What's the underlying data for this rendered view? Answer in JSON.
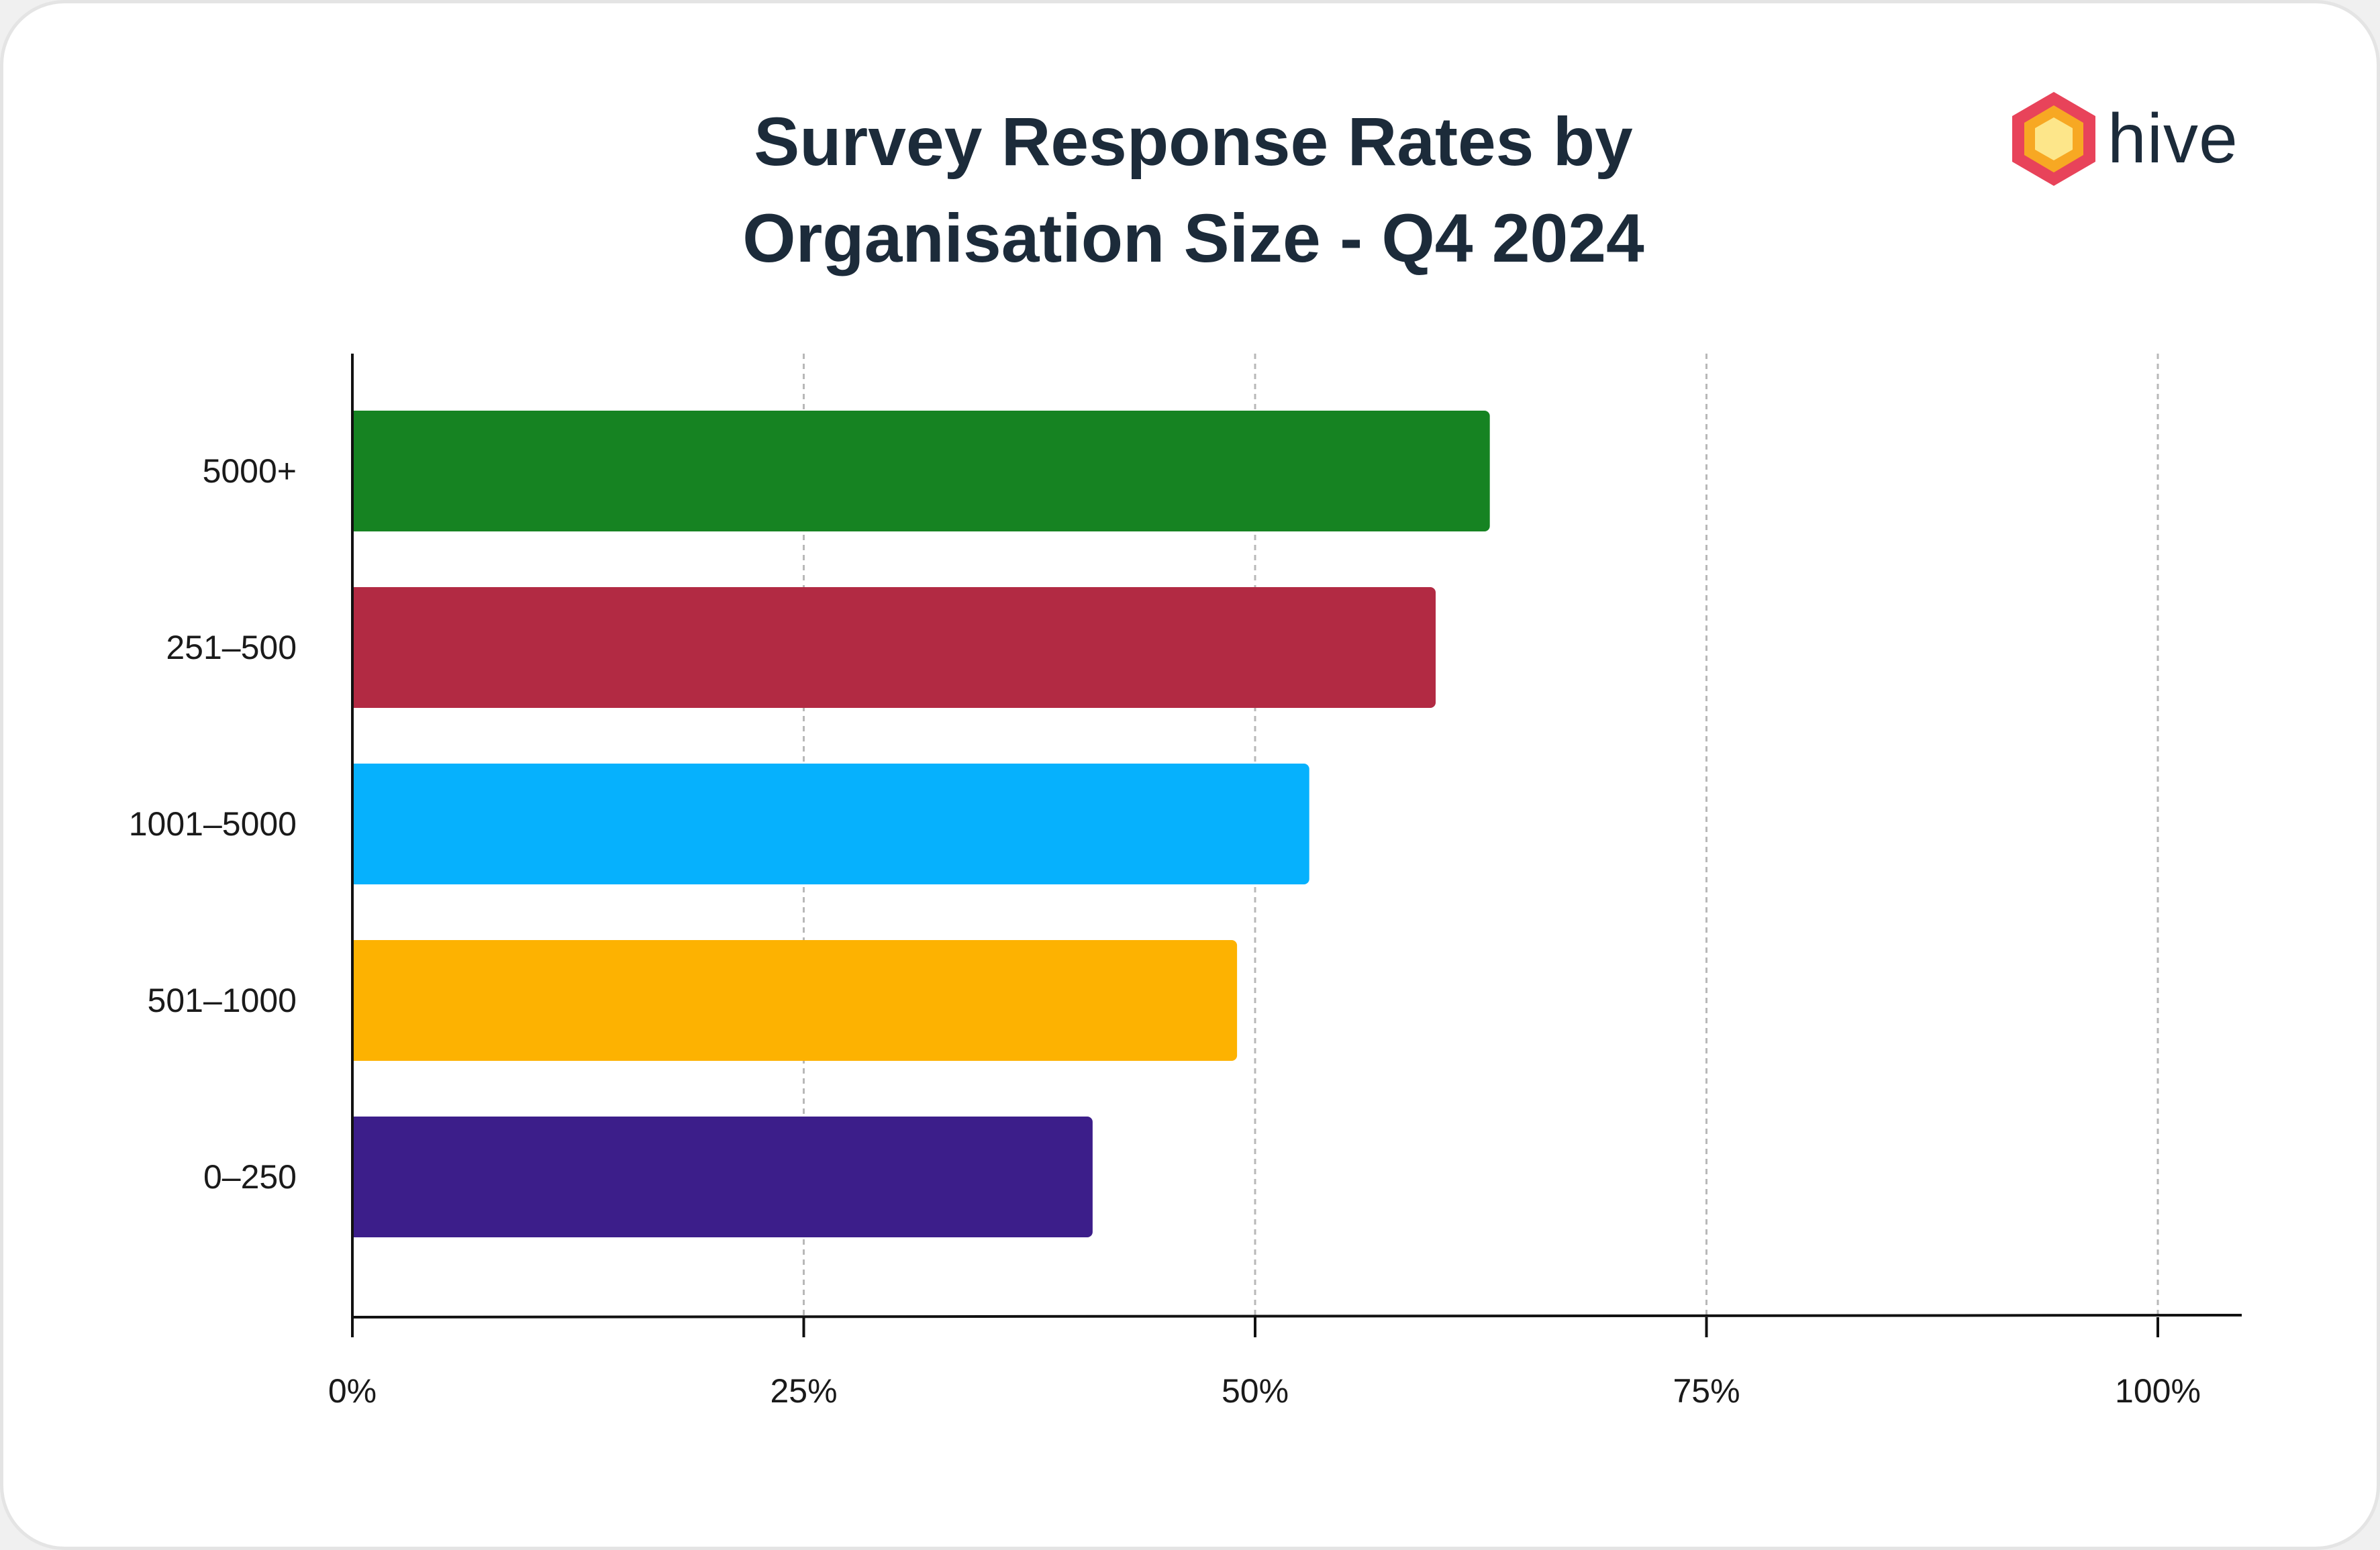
{
  "chart_data": {
    "type": "bar",
    "orientation": "horizontal",
    "title": "Survey Response Rates by Organisation Size - Q4 2024",
    "title_lines": [
      "Survey Response Rates by",
      "Organisation Size - Q4 2024"
    ],
    "categories": [
      "5000+",
      "251–500",
      "1001–5000",
      "501–1000",
      "0–250"
    ],
    "values": [
      63,
      60,
      53,
      49,
      41
    ],
    "colors": [
      "#168322",
      "#b22a43",
      "#06b1fd",
      "#fdb201",
      "#3c1e8a"
    ],
    "unit": "%",
    "xlim": [
      0,
      100
    ],
    "xticks": [
      0,
      25,
      50,
      75,
      100
    ],
    "xtick_labels": [
      "0%",
      "25%",
      "50%",
      "75%",
      "100%"
    ],
    "xlabel": "",
    "ylabel": "",
    "grid": "vertical dashed"
  },
  "brand": {
    "name": "hive",
    "icon": "hexagon-logo-icon",
    "colors": [
      "#e8435a",
      "#f7a823",
      "#fde68a"
    ]
  }
}
